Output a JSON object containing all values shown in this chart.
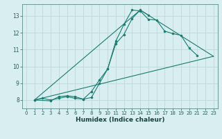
{
  "xlabel": "Humidex (Indice chaleur)",
  "bg_color": "#d8eef0",
  "grid_color": "#c0d8da",
  "line_color": "#1a7a6e",
  "xlim": [
    -0.5,
    23.5
  ],
  "ylim": [
    7.5,
    13.7
  ],
  "yticks": [
    8,
    9,
    10,
    11,
    12,
    13
  ],
  "xticks": [
    0,
    1,
    2,
    3,
    4,
    5,
    6,
    7,
    8,
    9,
    10,
    11,
    12,
    13,
    14,
    15,
    16,
    17,
    18,
    19,
    20,
    21,
    22,
    23
  ],
  "line1_x": [
    1,
    2,
    3,
    4,
    5,
    6,
    7,
    8,
    9,
    10,
    11,
    12,
    13,
    14,
    15,
    16,
    17,
    18,
    19,
    20,
    21
  ],
  "line1_y": [
    8.0,
    8.1,
    8.0,
    8.1,
    8.2,
    8.1,
    8.05,
    8.15,
    9.0,
    9.85,
    11.5,
    12.5,
    13.35,
    13.3,
    12.8,
    12.75,
    12.1,
    11.95,
    11.85,
    11.1,
    10.65
  ],
  "line2_x": [
    1,
    3,
    4,
    5,
    6,
    7,
    8,
    9,
    10,
    11,
    12,
    13,
    14,
    15
  ],
  "line2_y": [
    8.0,
    7.95,
    8.2,
    8.25,
    8.2,
    8.05,
    8.5,
    9.2,
    9.85,
    11.35,
    11.9,
    12.85,
    13.35,
    13.05
  ],
  "line3_x": [
    1,
    23
  ],
  "line3_y": [
    8.0,
    10.6
  ],
  "line4_x": [
    1,
    14,
    23
  ],
  "line4_y": [
    8.0,
    13.35,
    10.6
  ]
}
